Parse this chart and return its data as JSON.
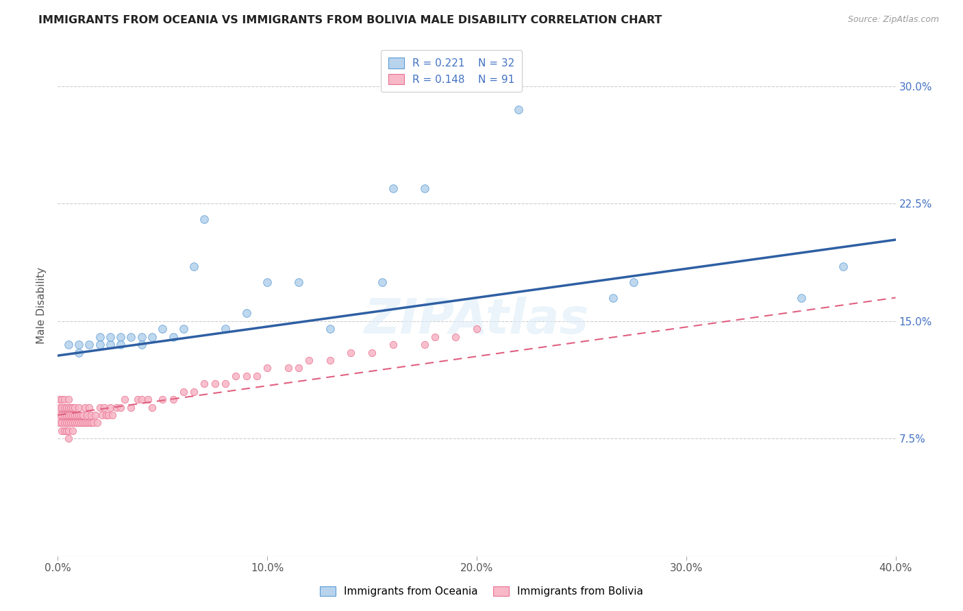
{
  "title": "IMMIGRANTS FROM OCEANIA VS IMMIGRANTS FROM BOLIVIA MALE DISABILITY CORRELATION CHART",
  "source": "Source: ZipAtlas.com",
  "ylabel": "Male Disability",
  "yticks_labels": [
    "7.5%",
    "15.0%",
    "22.5%",
    "30.0%"
  ],
  "ytick_vals": [
    0.075,
    0.15,
    0.225,
    0.3
  ],
  "xlim": [
    0.0,
    0.4
  ],
  "ylim": [
    0.0,
    0.32
  ],
  "legend_r1": "R = 0.221",
  "legend_n1": "N = 32",
  "legend_r2": "R = 0.148",
  "legend_n2": "N = 91",
  "color_oceania_fill": "#b8d4ed",
  "color_oceania_edge": "#5b9bd5",
  "color_bolivia_fill": "#f8b8c8",
  "color_bolivia_edge": "#e87090",
  "color_line_oceania": "#2e5fa3",
  "color_line_bolivia": "#e06080",
  "watermark": "ZIPAtlas",
  "oceania_x": [
    0.005,
    0.01,
    0.01,
    0.015,
    0.02,
    0.02,
    0.025,
    0.025,
    0.03,
    0.03,
    0.035,
    0.04,
    0.04,
    0.045,
    0.05,
    0.055,
    0.06,
    0.065,
    0.07,
    0.08,
    0.09,
    0.1,
    0.115,
    0.13,
    0.155,
    0.16,
    0.175,
    0.22,
    0.265,
    0.275,
    0.355,
    0.375
  ],
  "oceania_y": [
    0.135,
    0.135,
    0.13,
    0.135,
    0.14,
    0.135,
    0.135,
    0.14,
    0.14,
    0.135,
    0.14,
    0.14,
    0.135,
    0.14,
    0.145,
    0.14,
    0.145,
    0.185,
    0.215,
    0.145,
    0.155,
    0.175,
    0.175,
    0.145,
    0.175,
    0.235,
    0.235,
    0.285,
    0.165,
    0.175,
    0.165,
    0.185
  ],
  "bolivia_x": [
    0.001,
    0.001,
    0.001,
    0.001,
    0.002,
    0.002,
    0.002,
    0.002,
    0.002,
    0.003,
    0.003,
    0.003,
    0.003,
    0.003,
    0.004,
    0.004,
    0.004,
    0.004,
    0.005,
    0.005,
    0.005,
    0.005,
    0.005,
    0.005,
    0.006,
    0.006,
    0.006,
    0.007,
    0.007,
    0.007,
    0.007,
    0.008,
    0.008,
    0.008,
    0.009,
    0.009,
    0.01,
    0.01,
    0.01,
    0.011,
    0.011,
    0.012,
    0.012,
    0.013,
    0.013,
    0.014,
    0.014,
    0.015,
    0.015,
    0.016,
    0.016,
    0.017,
    0.018,
    0.019,
    0.02,
    0.021,
    0.022,
    0.023,
    0.024,
    0.025,
    0.026,
    0.028,
    0.03,
    0.032,
    0.035,
    0.038,
    0.04,
    0.043,
    0.045,
    0.05,
    0.055,
    0.06,
    0.065,
    0.07,
    0.075,
    0.08,
    0.085,
    0.09,
    0.095,
    0.1,
    0.11,
    0.115,
    0.12,
    0.13,
    0.14,
    0.15,
    0.16,
    0.175,
    0.18,
    0.19,
    0.2
  ],
  "bolivia_y": [
    0.09,
    0.095,
    0.1,
    0.085,
    0.09,
    0.095,
    0.1,
    0.085,
    0.08,
    0.09,
    0.095,
    0.1,
    0.085,
    0.08,
    0.09,
    0.095,
    0.085,
    0.08,
    0.09,
    0.095,
    0.1,
    0.085,
    0.08,
    0.075,
    0.09,
    0.095,
    0.085,
    0.09,
    0.095,
    0.085,
    0.08,
    0.09,
    0.095,
    0.085,
    0.09,
    0.085,
    0.09,
    0.095,
    0.085,
    0.09,
    0.085,
    0.09,
    0.085,
    0.095,
    0.085,
    0.09,
    0.085,
    0.095,
    0.085,
    0.09,
    0.085,
    0.085,
    0.09,
    0.085,
    0.095,
    0.09,
    0.095,
    0.09,
    0.09,
    0.095,
    0.09,
    0.095,
    0.095,
    0.1,
    0.095,
    0.1,
    0.1,
    0.1,
    0.095,
    0.1,
    0.1,
    0.105,
    0.105,
    0.11,
    0.11,
    0.11,
    0.115,
    0.115,
    0.115,
    0.12,
    0.12,
    0.12,
    0.125,
    0.125,
    0.13,
    0.13,
    0.135,
    0.135,
    0.14,
    0.14,
    0.145
  ],
  "oce_line_x": [
    0.0,
    0.4
  ],
  "oce_line_y": [
    0.128,
    0.202
  ],
  "bol_line_x": [
    0.0,
    0.4
  ],
  "bol_line_y": [
    0.09,
    0.165
  ]
}
